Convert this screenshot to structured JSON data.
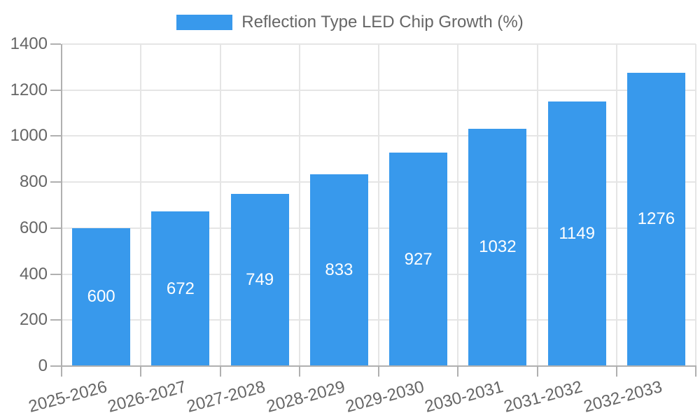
{
  "chart_data": {
    "type": "bar",
    "title": "Reflection Type LED Chip Growth (%)",
    "categories": [
      "2025-2026",
      "2026-2027",
      "2027-2028",
      "2028-2029",
      "2029-2030",
      "2030-2031",
      "2031-2032",
      "2032-2033"
    ],
    "values": [
      600,
      672,
      749,
      833,
      927,
      1032,
      1149,
      1276
    ],
    "xlabel": "",
    "ylabel": "",
    "ylim": [
      0,
      1400
    ],
    "yticks": [
      0,
      200,
      400,
      600,
      800,
      1000,
      1200,
      1400
    ],
    "grid": true,
    "legend_position": "top",
    "bar_color": "#3899ec",
    "value_label_color": "#ffffff",
    "text_color": "#666666",
    "grid_color": "#e5e5e5",
    "axis_color": "#b0b0b0"
  }
}
